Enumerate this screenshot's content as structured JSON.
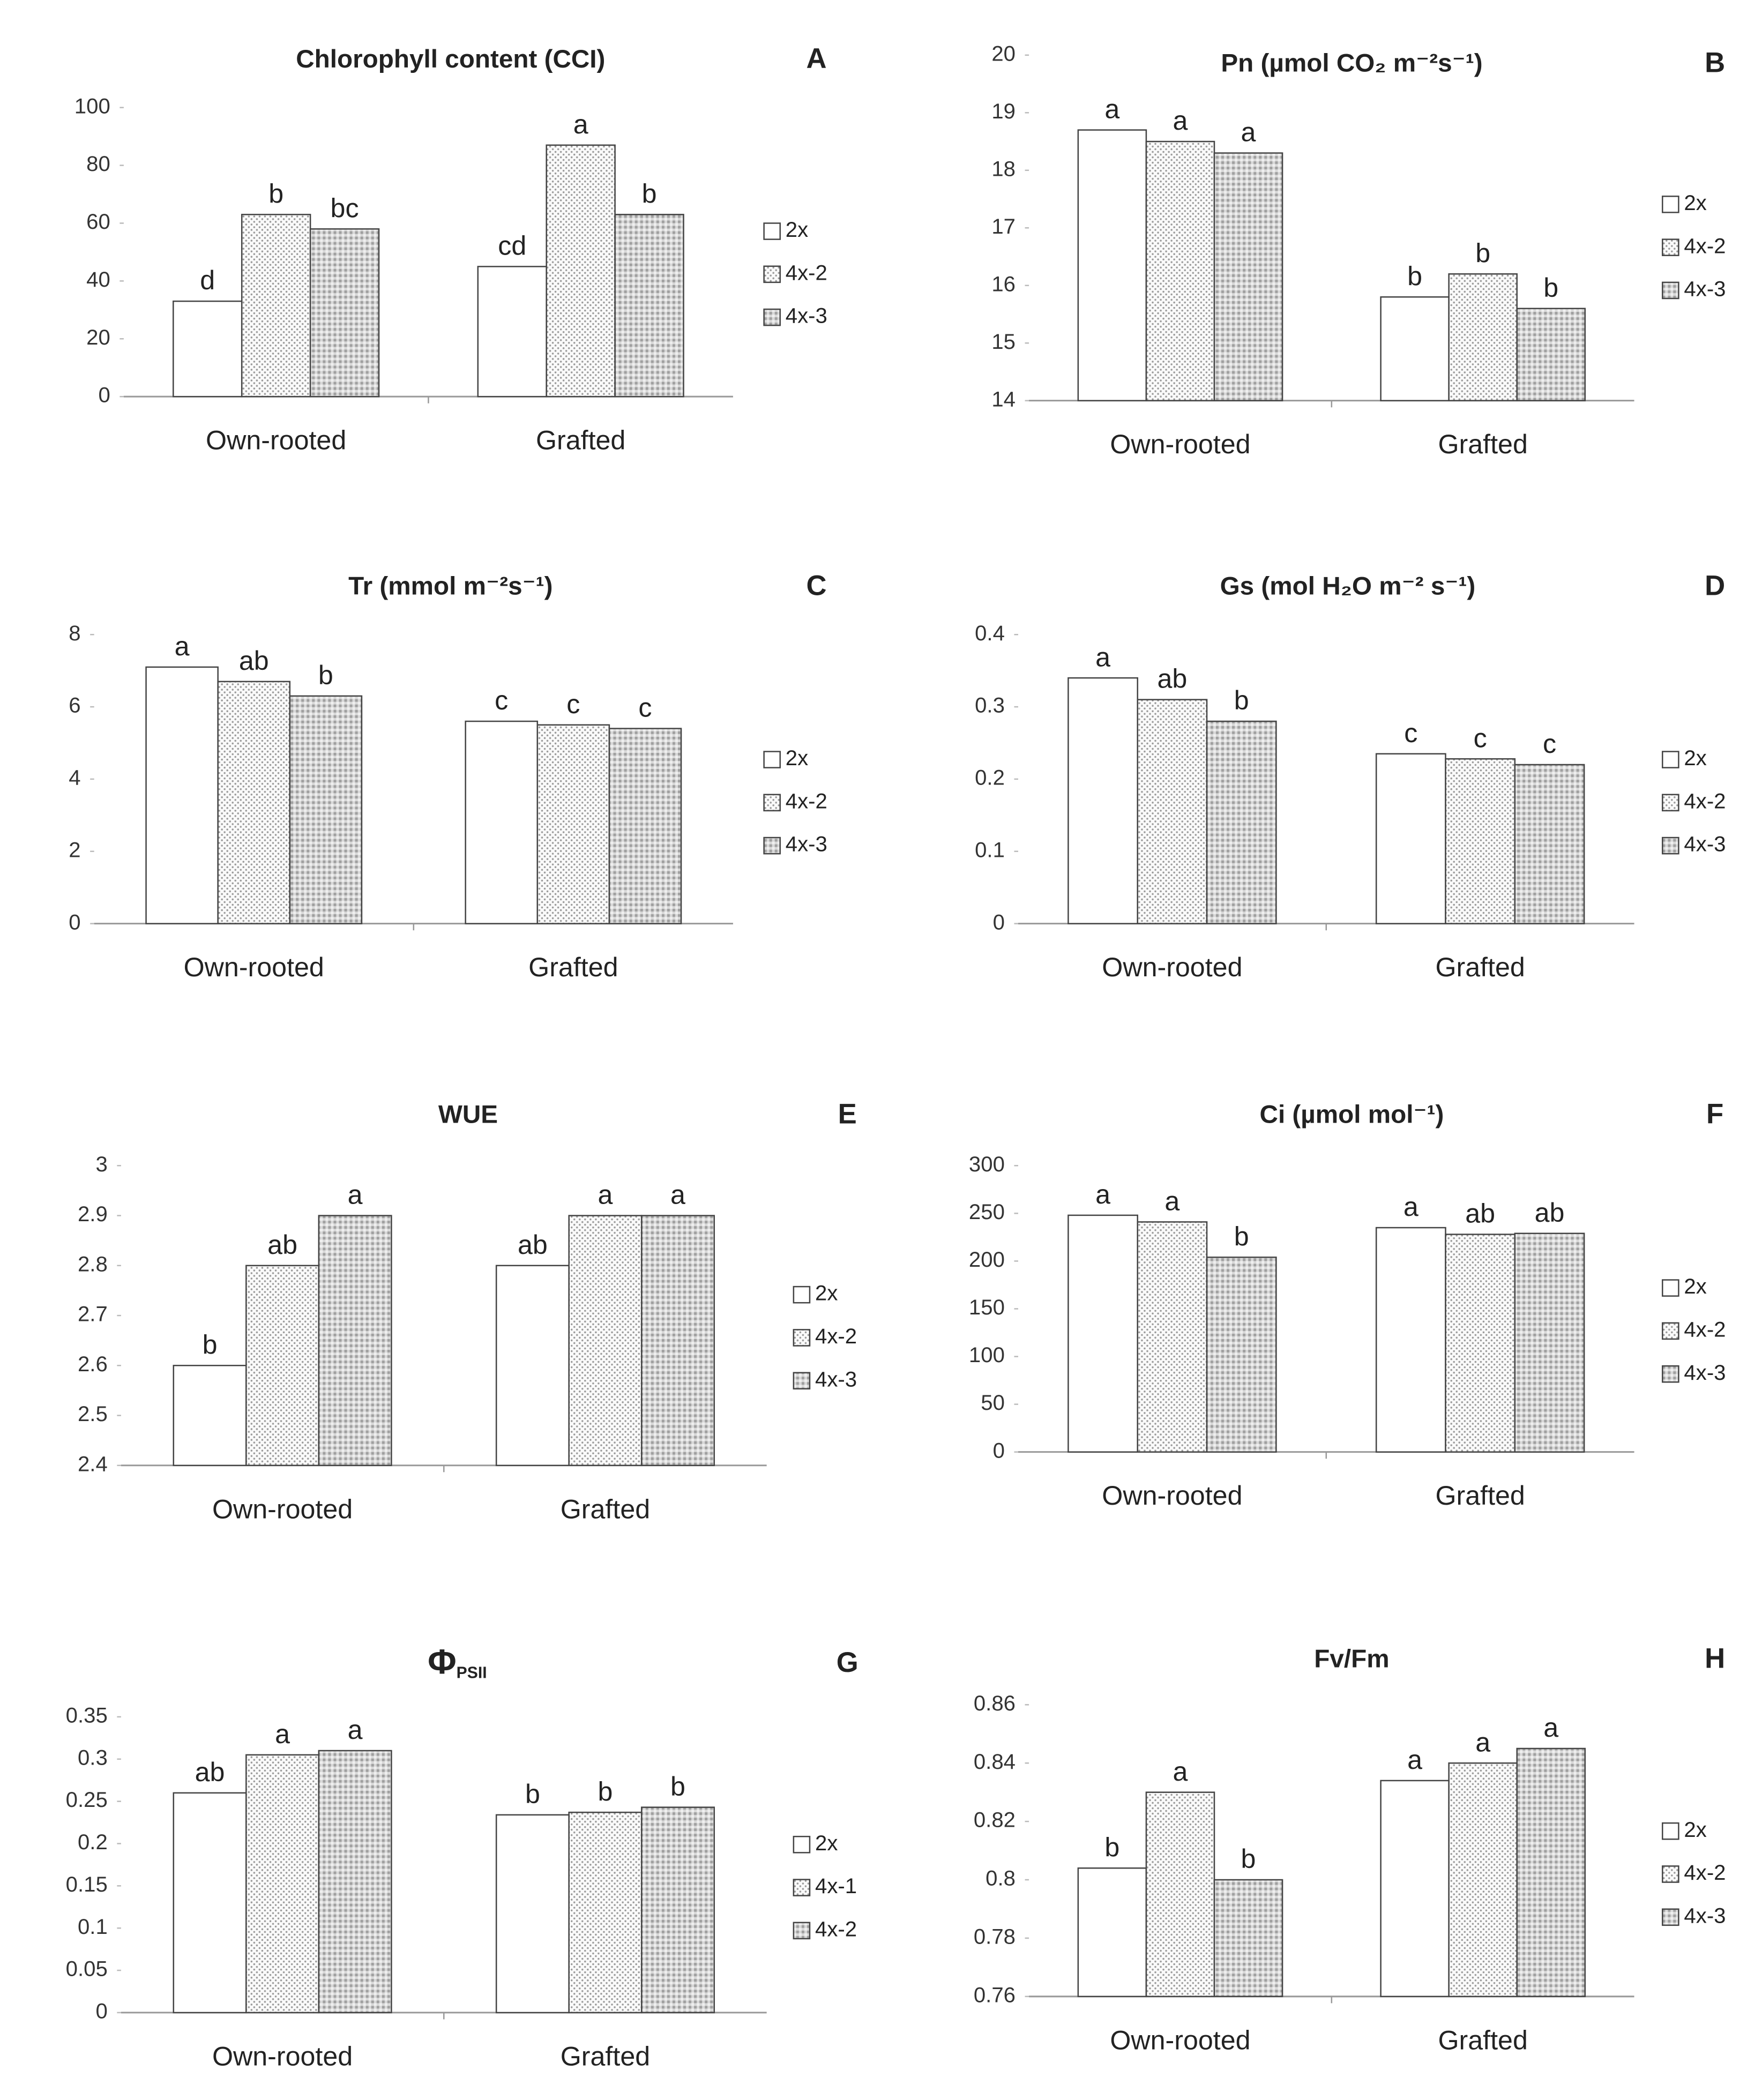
{
  "chart_data": [
    {
      "type": "bar",
      "title": "Chlorophyll content (CCI)",
      "panel": "A",
      "categories": [
        "Own-rooted",
        "Grafted"
      ],
      "series": [
        {
          "name": "2x",
          "color": "#ffffff",
          "pattern": "none",
          "values": [
            33,
            45
          ],
          "labels": [
            "d",
            "cd"
          ]
        },
        {
          "name": "4x-2",
          "color": "#e6e6e6",
          "pattern": "dots",
          "values": [
            63,
            87
          ],
          "labels": [
            "b",
            "a"
          ]
        },
        {
          "name": "4x-3",
          "color": "#cfcfcf",
          "pattern": "grid",
          "values": [
            58,
            63
          ],
          "labels": [
            "bc",
            "b"
          ]
        }
      ],
      "ylim": [
        0,
        100
      ],
      "yticks": [
        0,
        20,
        40,
        60,
        80,
        100
      ],
      "legend": "right"
    },
    {
      "type": "bar",
      "title": "Pn (µmol CO₂ m⁻²s⁻¹)",
      "panel": "B",
      "categories": [
        "Own-rooted",
        "Grafted"
      ],
      "series": [
        {
          "name": "2x",
          "color": "#ffffff",
          "pattern": "none",
          "values": [
            18.7,
            15.8
          ],
          "labels": [
            "a",
            "b"
          ]
        },
        {
          "name": "4x-2",
          "color": "#e6e6e6",
          "pattern": "dots",
          "values": [
            18.5,
            16.2
          ],
          "labels": [
            "a",
            "b"
          ]
        },
        {
          "name": "4x-3",
          "color": "#cfcfcf",
          "pattern": "grid",
          "values": [
            18.3,
            15.6
          ],
          "labels": [
            "a",
            "b"
          ]
        }
      ],
      "ylim": [
        14,
        20
      ],
      "yticks": [
        14,
        15,
        16,
        17,
        18,
        19,
        20
      ],
      "legend": "right"
    },
    {
      "type": "bar",
      "title": "Tr (mmol m⁻²s⁻¹)",
      "panel": "C",
      "categories": [
        "Own-rooted",
        "Grafted"
      ],
      "series": [
        {
          "name": "2x",
          "color": "#ffffff",
          "pattern": "none",
          "values": [
            7.1,
            5.6
          ],
          "labels": [
            "a",
            "c"
          ]
        },
        {
          "name": "4x-2",
          "color": "#e6e6e6",
          "pattern": "dots",
          "values": [
            6.7,
            5.5
          ],
          "labels": [
            "ab",
            "c"
          ]
        },
        {
          "name": "4x-3",
          "color": "#cfcfcf",
          "pattern": "grid",
          "values": [
            6.3,
            5.4
          ],
          "labels": [
            "b",
            "c"
          ]
        }
      ],
      "ylim": [
        0,
        8
      ],
      "yticks": [
        0,
        2,
        4,
        6,
        8
      ],
      "legend": "right"
    },
    {
      "type": "bar",
      "title": "Gs (mol H₂O m⁻² s⁻¹)",
      "panel": "D",
      "categories": [
        "Own-rooted",
        "Grafted"
      ],
      "series": [
        {
          "name": "2x",
          "color": "#ffffff",
          "pattern": "none",
          "values": [
            0.34,
            0.235
          ],
          "labels": [
            "a",
            "c"
          ]
        },
        {
          "name": "4x-2",
          "color": "#e6e6e6",
          "pattern": "dots",
          "values": [
            0.31,
            0.228
          ],
          "labels": [
            "ab",
            "c"
          ]
        },
        {
          "name": "4x-3",
          "color": "#cfcfcf",
          "pattern": "grid",
          "values": [
            0.28,
            0.22
          ],
          "labels": [
            "b",
            "c"
          ]
        }
      ],
      "ylim": [
        0,
        0.4
      ],
      "yticks": [
        0,
        0.1,
        0.2,
        0.3,
        0.4
      ],
      "legend": "right"
    },
    {
      "type": "bar",
      "title": "WUE",
      "panel": "E",
      "categories": [
        "Own-rooted",
        "Grafted"
      ],
      "series": [
        {
          "name": "2x",
          "color": "#ffffff",
          "pattern": "none",
          "values": [
            2.6,
            2.8
          ],
          "labels": [
            "b",
            "ab"
          ]
        },
        {
          "name": "4x-2",
          "color": "#e6e6e6",
          "pattern": "dots",
          "values": [
            2.8,
            2.9
          ],
          "labels": [
            "ab",
            "a"
          ]
        },
        {
          "name": "4x-3",
          "color": "#cfcfcf",
          "pattern": "grid",
          "values": [
            2.9,
            2.9
          ],
          "labels": [
            "a",
            "a"
          ]
        }
      ],
      "ylim": [
        2.4,
        3
      ],
      "yticks": [
        2.4,
        2.5,
        2.6,
        2.7,
        2.8,
        2.9,
        3
      ],
      "legend": "right"
    },
    {
      "type": "bar",
      "title": "Ci (µmol mol⁻¹)",
      "panel": "F",
      "categories": [
        "Own-rooted",
        "Grafted"
      ],
      "series": [
        {
          "name": "2x",
          "color": "#ffffff",
          "pattern": "none",
          "values": [
            248,
            235
          ],
          "labels": [
            "a",
            "a"
          ]
        },
        {
          "name": "4x-2",
          "color": "#e6e6e6",
          "pattern": "dots",
          "values": [
            241,
            228
          ],
          "labels": [
            "a",
            "ab"
          ]
        },
        {
          "name": "4x-3",
          "color": "#cfcfcf",
          "pattern": "grid",
          "values": [
            204,
            229
          ],
          "labels": [
            "b",
            "ab"
          ]
        }
      ],
      "ylim": [
        0,
        300
      ],
      "yticks": [
        0,
        50,
        100,
        150,
        200,
        250,
        300
      ],
      "legend": "right"
    },
    {
      "type": "bar",
      "title": "Φ",
      "title_sub": "PSII",
      "panel": "G",
      "categories": [
        "Own-rooted",
        "Grafted"
      ],
      "series": [
        {
          "name": "2x",
          "color": "#ffffff",
          "pattern": "none",
          "values": [
            0.26,
            0.234
          ],
          "labels": [
            "ab",
            "b"
          ]
        },
        {
          "name": "4x-1",
          "color": "#e6e6e6",
          "pattern": "dots",
          "values": [
            0.305,
            0.237
          ],
          "labels": [
            "a",
            "b"
          ]
        },
        {
          "name": "4x-2",
          "color": "#cfcfcf",
          "pattern": "grid",
          "values": [
            0.31,
            0.243
          ],
          "labels": [
            "a",
            "b"
          ]
        }
      ],
      "ylim": [
        0,
        0.35
      ],
      "yticks": [
        0,
        0.05,
        0.1,
        0.15,
        0.2,
        0.25,
        0.3,
        0.35
      ],
      "legend": "right"
    },
    {
      "type": "bar",
      "title": "Fv/Fm",
      "panel": "H",
      "categories": [
        "Own-rooted",
        "Grafted"
      ],
      "series": [
        {
          "name": "2x",
          "color": "#ffffff",
          "pattern": "none",
          "values": [
            0.804,
            0.834
          ],
          "labels": [
            "b",
            "a"
          ]
        },
        {
          "name": "4x-2",
          "color": "#e6e6e6",
          "pattern": "dots",
          "values": [
            0.83,
            0.84
          ],
          "labels": [
            "a",
            "a"
          ]
        },
        {
          "name": "4x-3",
          "color": "#cfcfcf",
          "pattern": "grid",
          "values": [
            0.8,
            0.845
          ],
          "labels": [
            "b",
            "a"
          ]
        }
      ],
      "ylim": [
        0.76,
        0.86
      ],
      "yticks": [
        0.76,
        0.78,
        0.8,
        0.82,
        0.84,
        0.86
      ],
      "legend": "right"
    }
  ]
}
